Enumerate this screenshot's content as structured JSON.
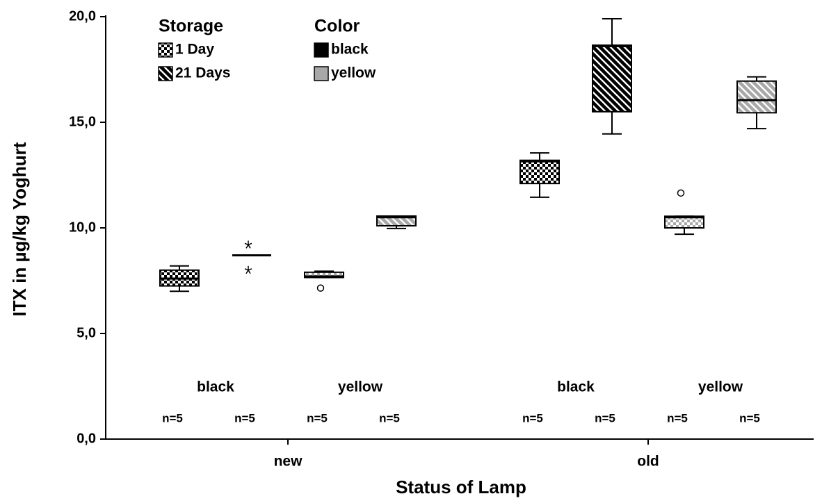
{
  "chart_data": {
    "type": "box",
    "xlabel": "Status of Lamp",
    "ylabel": "ITX in µg/kg Yoghurt",
    "ylim": [
      0,
      20
    ],
    "yticks": [
      {
        "value": 0,
        "label": "0,0"
      },
      {
        "value": 5,
        "label": "5,0"
      },
      {
        "value": 10,
        "label": "10,0"
      },
      {
        "value": 15,
        "label": "15,0"
      },
      {
        "value": 20,
        "label": "20,0"
      }
    ],
    "legend": {
      "storage": {
        "title": "Storage",
        "items": [
          "1 Day",
          "21 Days"
        ]
      },
      "color": {
        "title": "Color",
        "items": [
          {
            "name": "black",
            "color": "#000000"
          },
          {
            "name": "yellow",
            "color": "#a8a8a8"
          }
        ]
      }
    },
    "categories": [
      {
        "label": "new",
        "groups": [
          {
            "label": "black",
            "boxes": [
              {
                "min": 7.0,
                "q1": 7.25,
                "median": 7.6,
                "q3": 8.0,
                "max": 8.2,
                "outliers": [],
                "extremes": [],
                "n_label": "n=5"
              },
              {
                "min": 8.7,
                "q1": 8.7,
                "median": 8.7,
                "q3": 8.7,
                "max": 8.7,
                "outliers": [],
                "extremes": [
                  9.2,
                  8.0
                ],
                "n_label": "n=5"
              }
            ]
          },
          {
            "label": "yellow",
            "boxes": [
              {
                "min": 7.65,
                "q1": 7.65,
                "median": 7.7,
                "q3": 7.9,
                "max": 7.95,
                "outliers": [
                  7.15
                ],
                "extremes": [],
                "n_label": "n=5"
              },
              {
                "min": 9.97,
                "q1": 10.1,
                "median": 10.5,
                "q3": 10.56,
                "max": 10.56,
                "outliers": [],
                "extremes": [],
                "n_label": "n=5"
              }
            ]
          }
        ]
      },
      {
        "label": "old",
        "groups": [
          {
            "label": "black",
            "boxes": [
              {
                "min": 11.45,
                "q1": 12.1,
                "median": 13.15,
                "q3": 13.2,
                "max": 13.55,
                "outliers": [],
                "extremes": [],
                "n_label": "n=5"
              },
              {
                "min": 14.45,
                "q1": 15.5,
                "median": 18.6,
                "q3": 18.65,
                "max": 19.9,
                "outliers": [],
                "extremes": [],
                "n_label": "n=5"
              }
            ]
          },
          {
            "label": "yellow",
            "boxes": [
              {
                "min": 9.7,
                "q1": 10.0,
                "median": 10.5,
                "q3": 10.55,
                "max": 10.55,
                "outliers": [
                  11.65
                ],
                "extremes": [],
                "n_label": "n=5"
              },
              {
                "min": 14.7,
                "q1": 15.45,
                "median": 16.05,
                "q3": 16.95,
                "max": 17.15,
                "outliers": [],
                "extremes": [],
                "n_label": "n=5"
              }
            ]
          }
        ]
      }
    ]
  }
}
